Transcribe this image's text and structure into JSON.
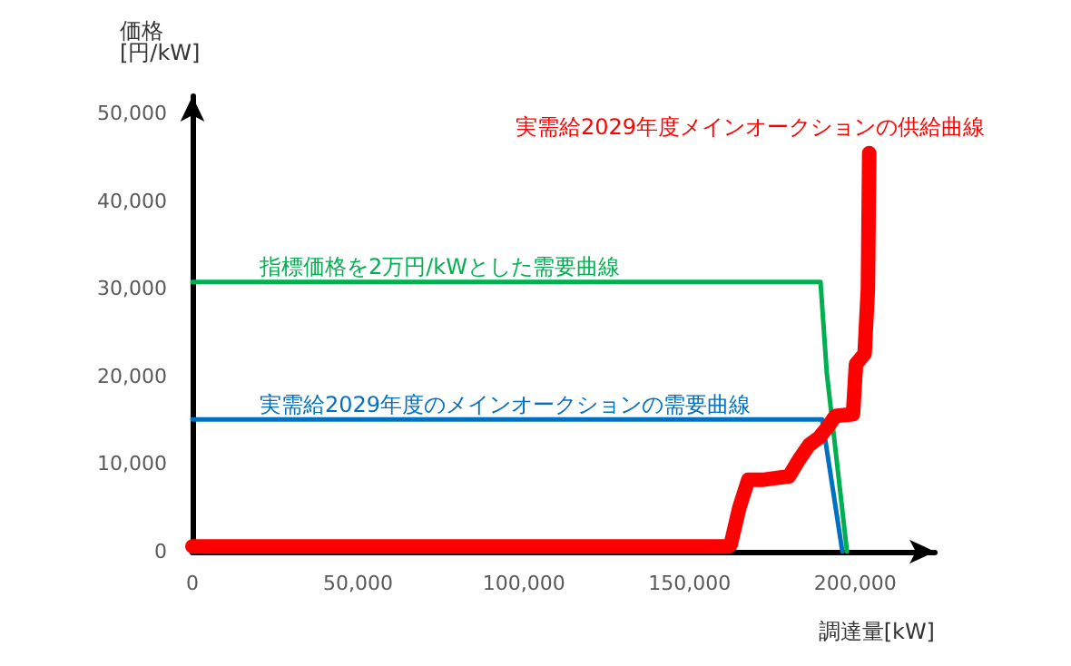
{
  "chart_data": {
    "type": "line",
    "xlabel": "調達量[kW]",
    "ylabel": "価格\n[円/kW]",
    "xlim": [
      0,
      224000
    ],
    "xticks": [
      {
        "value": 0,
        "label": "0"
      },
      {
        "value": 50000,
        "label": "50,000"
      },
      {
        "value": 100000,
        "label": "100,000"
      },
      {
        "value": 150000,
        "label": "150,000"
      },
      {
        "value": 200000,
        "label": "200,000"
      }
    ],
    "ylim": [
      0,
      52000
    ],
    "yticks": [
      {
        "value": 0,
        "label": "0"
      },
      {
        "value": 10000,
        "label": "10,000"
      },
      {
        "value": 20000,
        "label": "20,000"
      },
      {
        "value": 30000,
        "label": "30,000"
      },
      {
        "value": 40000,
        "label": "40,000"
      },
      {
        "value": 50000,
        "label": "50,000"
      }
    ],
    "grid": false,
    "legend": false,
    "marker": "none",
    "line_style": "solid",
    "series": [
      {
        "name": "実需給2029年度メインオークションの供給曲線",
        "color": "#ff0000",
        "x": [
          0,
          161600,
          162400,
          165000,
          167700,
          172000,
          176000,
          180000,
          183000,
          186100,
          189000,
          191400,
          194000,
          199300,
          200200,
          202800,
          203800,
          204200
        ],
        "values": [
          600,
          600,
          800,
          5000,
          8200,
          8200,
          8400,
          8600,
          10500,
          12200,
          13000,
          14100,
          15500,
          15700,
          21400,
          22600,
          30000,
          45500
        ]
      },
      {
        "name": "指標価格を2万円/kWとした需要曲線",
        "color": "#00b050",
        "x": [
          0,
          189500,
          191400,
          197500
        ],
        "values": [
          30800,
          30800,
          20400,
          0
        ]
      },
      {
        "name": "実需給2029年度のメインオークションの需要曲線",
        "color": "#0070c0",
        "x": [
          0,
          190000,
          196100
        ],
        "values": [
          15100,
          15100,
          0
        ]
      }
    ]
  }
}
